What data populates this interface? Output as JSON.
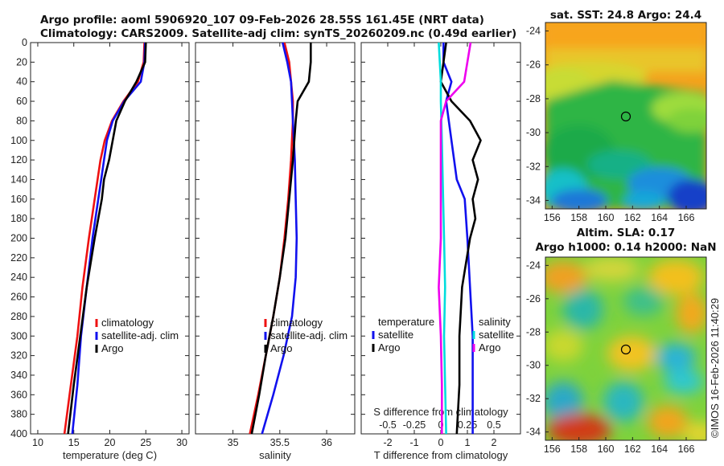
{
  "header": {
    "title_line1": "Argo profile: aoml 5906920_107 09-Feb-2026 28.55S 161.45E (NRT data)",
    "title_line2": "Climatology: CARS2009. Satellite-adj clim: synTS_20260209.nc (0.49d earlier)"
  },
  "watermark": "©IMOS 16-Feb-2026 11:40:29",
  "colors": {
    "climatology": "#ee1111",
    "satellite": "#1111ee",
    "argo": "#000000",
    "sal_satellite": "#00dddd",
    "sal_argo": "#ee00ee"
  },
  "chart_data": [
    {
      "type": "line",
      "name": "temperature-profile",
      "xlabel": "temperature (deg C)",
      "ylabel": "",
      "xlim": [
        9,
        31
      ],
      "ylim": [
        400,
        0
      ],
      "xticks": [
        10,
        15,
        20,
        25,
        30
      ],
      "yticks": [
        0,
        20,
        40,
        60,
        80,
        100,
        120,
        140,
        160,
        180,
        200,
        220,
        240,
        260,
        280,
        300,
        320,
        340,
        360,
        380,
        400
      ],
      "legend": [
        "climatology",
        "satellite-adj. clim",
        "Argo"
      ],
      "series": [
        {
          "name": "climatology",
          "depth": [
            0,
            20,
            40,
            60,
            80,
            100,
            120,
            140,
            160,
            200,
            250,
            300,
            350,
            400
          ],
          "values": [
            24.8,
            24.7,
            23.9,
            21.9,
            20.3,
            19.3,
            18.7,
            18.3,
            17.9,
            17.1,
            16.2,
            15.5,
            14.6,
            13.7
          ]
        },
        {
          "name": "satellite-adj. clim",
          "depth": [
            0,
            20,
            40,
            60,
            80,
            100,
            120,
            140,
            160,
            200,
            250,
            300,
            350,
            400
          ],
          "values": [
            24.9,
            24.8,
            24.3,
            22.0,
            20.4,
            19.6,
            19.2,
            18.8,
            18.4,
            17.6,
            16.8,
            16.0,
            15.5,
            14.8
          ]
        },
        {
          "name": "Argo",
          "depth": [
            0,
            20,
            30,
            40,
            60,
            80,
            100,
            120,
            140,
            160,
            200,
            250,
            300,
            350,
            400
          ],
          "values": [
            25.0,
            24.9,
            24.3,
            23.7,
            22.1,
            20.9,
            20.4,
            19.9,
            19.2,
            18.9,
            17.9,
            16.8,
            15.9,
            15.0,
            14.2
          ]
        }
      ]
    },
    {
      "type": "line",
      "name": "salinity-profile",
      "xlabel": "salinity",
      "xlim": [
        34.6,
        36.3
      ],
      "ylim": [
        400,
        0
      ],
      "xticks": [
        35,
        35.5,
        36
      ],
      "legend": [
        "climatology",
        "satellite-adj. clim",
        "Argo"
      ],
      "series": [
        {
          "name": "climatology",
          "depth": [
            0,
            20,
            40,
            60,
            80,
            120,
            160,
            200,
            240,
            280,
            320,
            360,
            400
          ],
          "values": [
            35.55,
            35.6,
            35.62,
            35.64,
            35.64,
            35.62,
            35.59,
            35.55,
            35.5,
            35.43,
            35.35,
            35.27,
            35.18
          ]
        },
        {
          "name": "satellite-adj. clim",
          "depth": [
            0,
            20,
            40,
            60,
            80,
            120,
            160,
            200,
            240,
            280,
            320,
            360,
            400
          ],
          "values": [
            35.53,
            35.58,
            35.62,
            35.63,
            35.64,
            35.66,
            35.67,
            35.68,
            35.67,
            35.63,
            35.54,
            35.43,
            35.31
          ]
        },
        {
          "name": "Argo",
          "depth": [
            0,
            20,
            40,
            60,
            80,
            120,
            160,
            200,
            240,
            280,
            320,
            360,
            400
          ],
          "values": [
            35.83,
            35.83,
            35.81,
            35.69,
            35.67,
            35.64,
            35.6,
            35.56,
            35.5,
            35.43,
            35.35,
            35.28,
            35.2
          ]
        }
      ]
    },
    {
      "type": "line",
      "name": "difference-profile",
      "xlabel": "T difference from climatology",
      "xlabel2": "S difference from climatology",
      "xlim": [
        -3,
        3
      ],
      "ylim": [
        400,
        0
      ],
      "xticks": [
        -2,
        -1,
        0,
        1,
        2
      ],
      "xticks2": [
        -0.5,
        -0.25,
        0,
        0.25,
        0.5
      ],
      "legend": [
        "temperature",
        "satellite",
        "Argo",
        "salinity",
        "satellite",
        "Argo"
      ],
      "series": [
        {
          "name": "temperature satellite",
          "depth": [
            0,
            20,
            40,
            60,
            80,
            100,
            120,
            140,
            160,
            200,
            250,
            300,
            350,
            400
          ],
          "values": [
            0.1,
            0.1,
            0.4,
            0.2,
            0.3,
            0.4,
            0.5,
            0.6,
            0.9,
            1.0,
            1.1,
            1.2,
            1.2,
            1.2
          ]
        },
        {
          "name": "temperature Argo",
          "depth": [
            0,
            20,
            40,
            60,
            80,
            100,
            120,
            140,
            160,
            180,
            200,
            250,
            300,
            350,
            400
          ],
          "values": [
            0.2,
            0.1,
            0.0,
            0.4,
            1.1,
            1.5,
            1.2,
            1.4,
            1.2,
            1.3,
            1.1,
            0.8,
            0.7,
            0.7,
            0.6
          ]
        },
        {
          "name": "salinity satellite",
          "depth": [
            0,
            20,
            40,
            60,
            100,
            150,
            200,
            250,
            300,
            350,
            400
          ],
          "values": [
            -0.02,
            -0.01,
            0.0,
            0.0,
            0.01,
            0.02,
            0.03,
            0.04,
            0.03,
            0.04,
            0.05
          ]
        },
        {
          "name": "salinity Argo",
          "depth": [
            0,
            20,
            40,
            60,
            80,
            100,
            150,
            200,
            250,
            300,
            350,
            400
          ],
          "values": [
            0.28,
            0.25,
            0.22,
            0.05,
            0.0,
            0.0,
            0.0,
            0.0,
            -0.02,
            0.0,
            0.01,
            0.01
          ]
        }
      ]
    },
    {
      "type": "heatmap",
      "name": "sst-map",
      "title": "sat. SST: 24.8 Argo: 24.4",
      "xticks": [
        156,
        158,
        160,
        162,
        164,
        166
      ],
      "yticks": [
        -24,
        -26,
        -28,
        -30,
        -32,
        -34
      ],
      "xlim": [
        155.5,
        167.5
      ],
      "ylim": [
        -34.5,
        -23.5
      ],
      "float_lon": 161.45,
      "float_lat": -28.55
    },
    {
      "type": "heatmap",
      "name": "sla-map",
      "title": "Altim. SLA: 0.17",
      "title2": "Argo h1000: 0.14 h2000: NaN",
      "xticks": [
        156,
        158,
        160,
        162,
        164,
        166
      ],
      "yticks": [
        -24,
        -26,
        -28,
        -30,
        -32,
        -34
      ],
      "xlim": [
        155.5,
        167.5
      ],
      "ylim": [
        -34.5,
        -23.5
      ],
      "float_lon": 161.45,
      "float_lat": -28.55
    }
  ]
}
